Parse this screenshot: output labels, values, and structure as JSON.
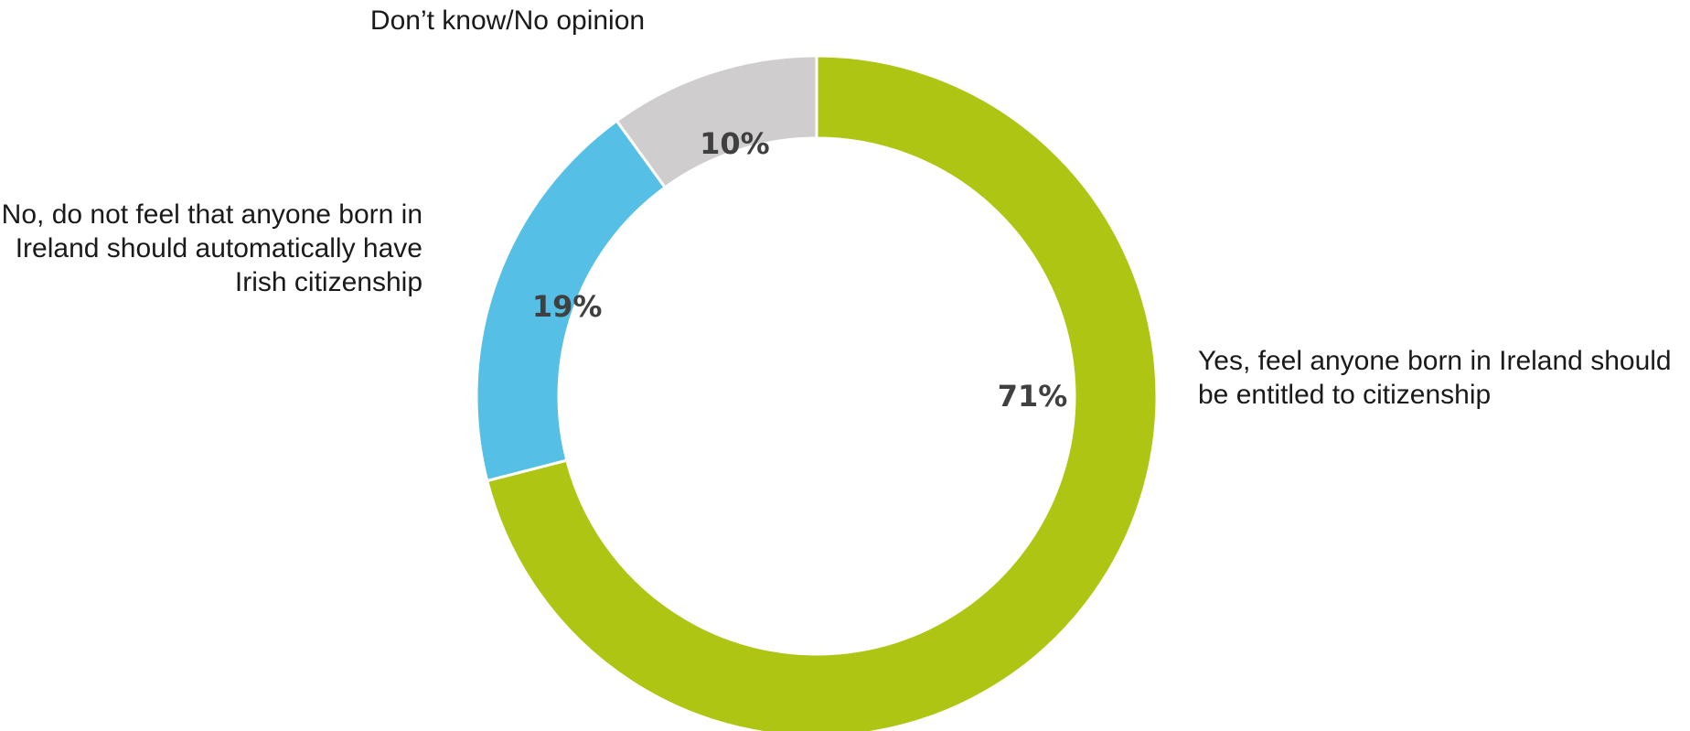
{
  "chart_data": {
    "type": "pie",
    "donut": true,
    "title": "",
    "slices": [
      {
        "label": "Yes, feel anyone born in Ireland should be entitled to citizenship",
        "value": 71,
        "value_label": "71%",
        "color": "#afc513"
      },
      {
        "label": "No, do not feel that anyone born in Ireland should automatically have Irish citizenship",
        "value": 19,
        "value_label": "19%",
        "color": "#55bfe6"
      },
      {
        "label": "Don’t know/No opinion",
        "value": 10,
        "value_label": "10%",
        "color": "#cfcdce"
      }
    ],
    "start": "top",
    "direction": "clockwise",
    "legend": "none"
  }
}
